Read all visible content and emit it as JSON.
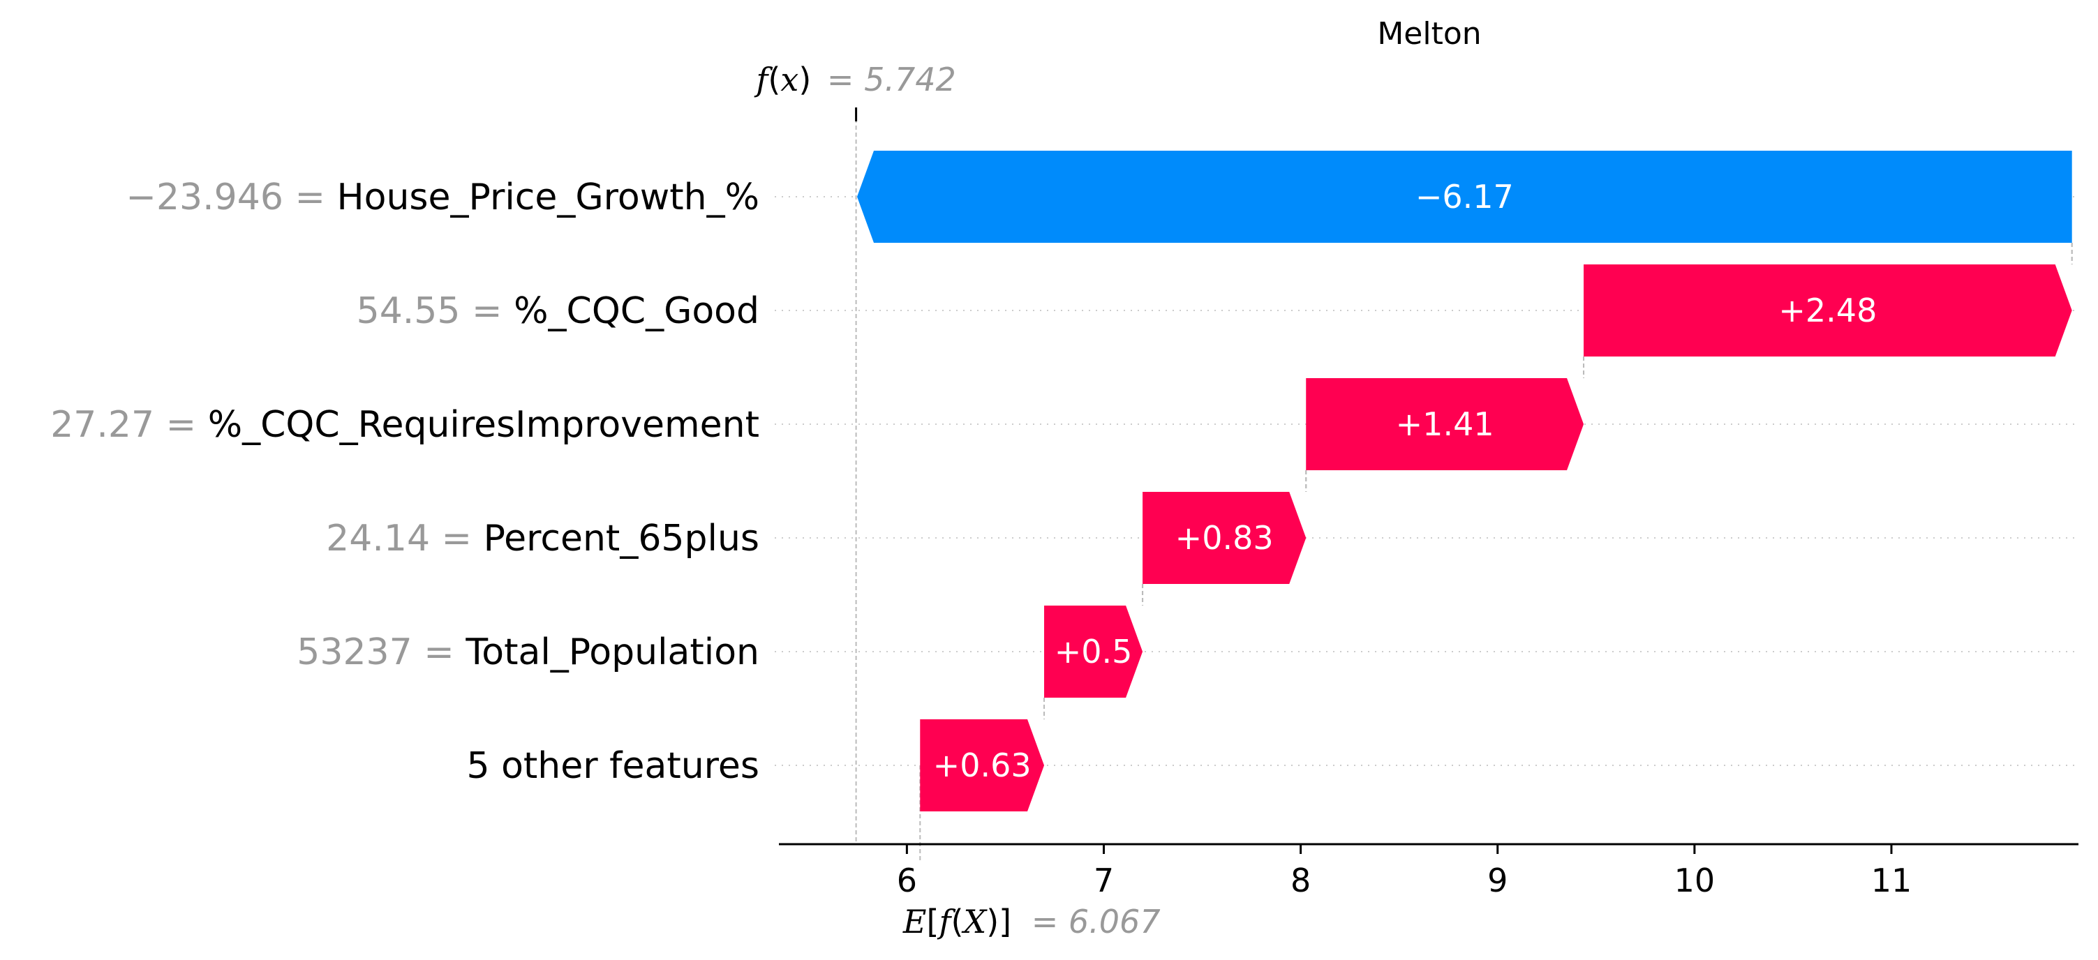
{
  "chart_data": {
    "type": "bar",
    "subtype": "waterfall",
    "title": "Melton",
    "base_value": 6.067,
    "base_value_label": "6.067",
    "output_value": 5.742,
    "output_value_label": "5.742",
    "xlim": [
      5.35,
      11.95
    ],
    "xticks": [
      6,
      7,
      8,
      9,
      10,
      11
    ],
    "features": [
      {
        "name": "House_Price_Growth_%",
        "value_label": "−23.946",
        "contribution": -6.17,
        "label": "−6.17"
      },
      {
        "name": "%_CQC_Good",
        "value_label": "54.55",
        "contribution": 2.48,
        "label": "+2.48"
      },
      {
        "name": "%_CQC_RequiresImprovement",
        "value_label": "27.27",
        "contribution": 1.41,
        "label": "+1.41"
      },
      {
        "name": "Percent_65plus",
        "value_label": "24.14",
        "contribution": 0.83,
        "label": "+0.83"
      },
      {
        "name": "Total_Population",
        "value_label": "53237",
        "contribution": 0.5,
        "label": "+0.5"
      },
      {
        "name": "5 other features",
        "value_label": "",
        "contribution": 0.63,
        "label": "+0.63"
      }
    ],
    "colors": {
      "positive": "#ff0051",
      "negative": "#008bfb",
      "value_text": "#999999",
      "label_text": "#000000",
      "gridline": "#cccccc",
      "connector": "#bbbbbb"
    }
  }
}
